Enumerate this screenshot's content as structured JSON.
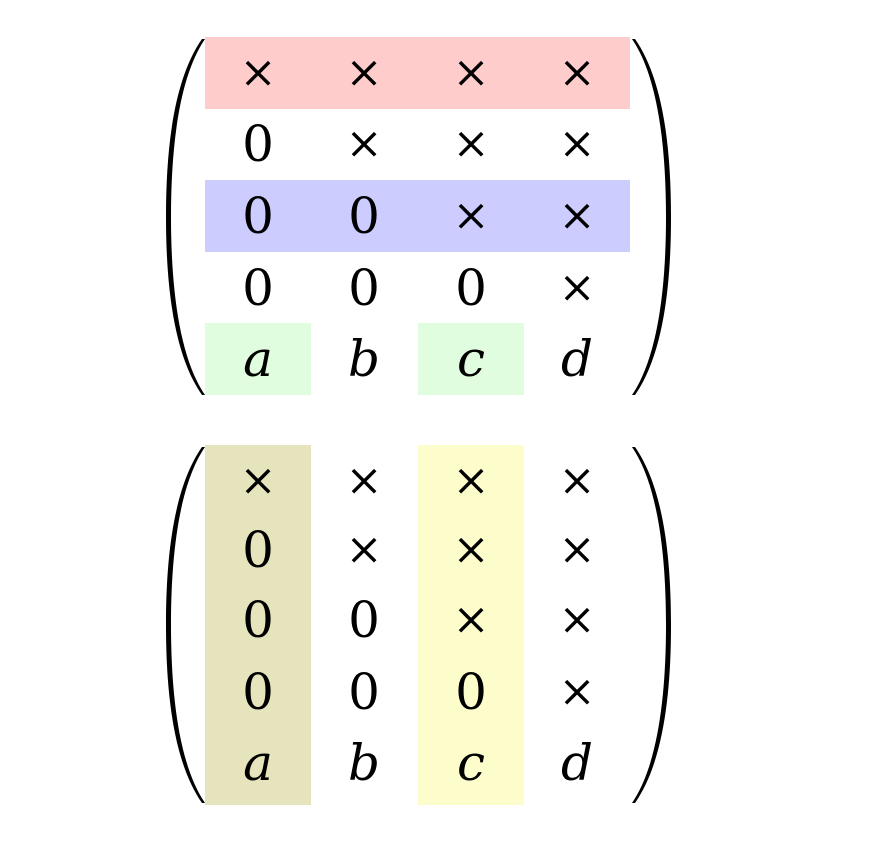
{
  "matrices": [
    {
      "rows": [
        [
          "×",
          "×",
          "×",
          "×"
        ],
        [
          "0",
          "×",
          "×",
          "×"
        ],
        [
          "0",
          "0",
          "×",
          "×"
        ],
        [
          "0",
          "0",
          "0",
          "×"
        ],
        [
          "a",
          "b",
          "c",
          "d"
        ]
      ],
      "highlights": [
        {
          "kind": "row",
          "index": 0,
          "cols": [
            0,
            3
          ],
          "color": "#ffcccc"
        },
        {
          "kind": "row",
          "index": 2,
          "cols": [
            0,
            3
          ],
          "color": "#ccccff"
        },
        {
          "kind": "cell",
          "row": 4,
          "col": 0,
          "color": "#e0fde0"
        },
        {
          "kind": "cell",
          "row": 4,
          "col": 2,
          "color": "#e0fde0"
        }
      ]
    },
    {
      "rows": [
        [
          "×",
          "×",
          "×",
          "×"
        ],
        [
          "0",
          "×",
          "×",
          "×"
        ],
        [
          "0",
          "0",
          "×",
          "×"
        ],
        [
          "0",
          "0",
          "0",
          "×"
        ],
        [
          "a",
          "b",
          "c",
          "d"
        ]
      ],
      "highlights": [
        {
          "kind": "col",
          "index": 0,
          "color": "#e6e4bc"
        },
        {
          "kind": "col",
          "index": 2,
          "color": "#fdfdcc"
        }
      ]
    }
  ]
}
